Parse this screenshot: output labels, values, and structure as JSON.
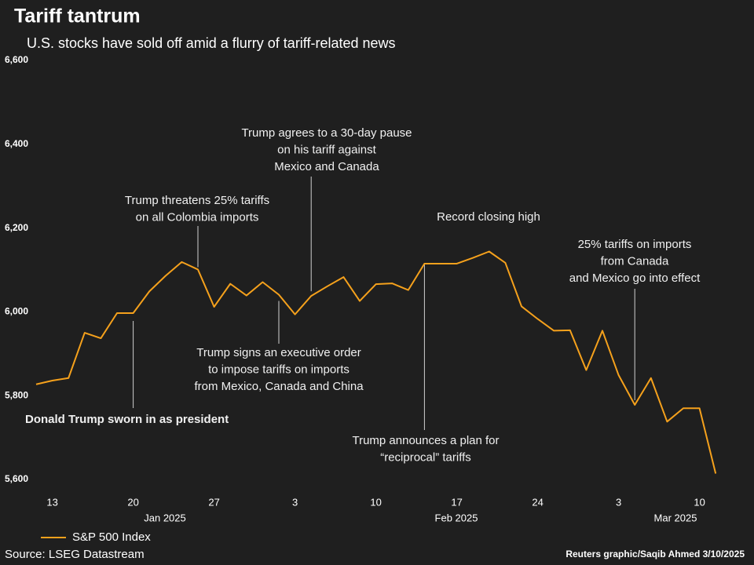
{
  "chart_data": {
    "type": "line",
    "title": "Tariff tantrum",
    "subtitle": "U.S. stocks have sold off amid a flurry of tariff-related news",
    "x": [
      "2025-01-10",
      "2025-01-13",
      "2025-01-14",
      "2025-01-15",
      "2025-01-16",
      "2025-01-17",
      "2025-01-20",
      "2025-01-21",
      "2025-01-22",
      "2025-01-23",
      "2025-01-24",
      "2025-01-27",
      "2025-01-28",
      "2025-01-29",
      "2025-01-30",
      "2025-01-31",
      "2025-02-03",
      "2025-02-04",
      "2025-02-05",
      "2025-02-06",
      "2025-02-07",
      "2025-02-10",
      "2025-02-11",
      "2025-02-12",
      "2025-02-13",
      "2025-02-14",
      "2025-02-17",
      "2025-02-18",
      "2025-02-19",
      "2025-02-20",
      "2025-02-21",
      "2025-02-24",
      "2025-02-25",
      "2025-02-26",
      "2025-02-27",
      "2025-02-28",
      "2025-03-03",
      "2025-03-04",
      "2025-03-05",
      "2025-03-06",
      "2025-03-07",
      "2025-03-10",
      "2025-03-11"
    ],
    "series": [
      {
        "name": "S&P 500 Index",
        "color": "#f5a11c",
        "values": [
          5827,
          5836,
          5842,
          5950,
          5937,
          5997,
          5997,
          6049,
          6086,
          6119,
          6101,
          6012,
          6067,
          6039,
          6071,
          6041,
          5994,
          6038,
          6061,
          6083,
          6026,
          6066,
          6068,
          6052,
          6115,
          6115,
          6115,
          6129,
          6144,
          6117,
          6013,
          5983,
          5955,
          5956,
          5861,
          5955,
          5849,
          5778,
          5842,
          5738,
          5770,
          5770,
          5614
        ]
      }
    ],
    "ylim": [
      5600,
      6600
    ],
    "yticks": [
      {
        "value": 5600,
        "label": "5,600"
      },
      {
        "value": 5800,
        "label": "5,800"
      },
      {
        "value": 6000,
        "label": "6,000"
      },
      {
        "value": 6200,
        "label": "6,200"
      },
      {
        "value": 6400,
        "label": "6,400"
      },
      {
        "value": 6600,
        "label": "6,600"
      }
    ],
    "xticks": [
      {
        "value": "2025-01-13",
        "label": "13"
      },
      {
        "value": "2025-01-20",
        "label": "20"
      },
      {
        "value": "2025-01-27",
        "label": "27"
      },
      {
        "value": "2025-02-03",
        "label": "3"
      },
      {
        "value": "2025-02-10",
        "label": "10"
      },
      {
        "value": "2025-02-17",
        "label": "17"
      },
      {
        "value": "2025-02-24",
        "label": "24"
      },
      {
        "value": "2025-03-03",
        "label": "3"
      },
      {
        "value": "2025-03-10",
        "label": "10"
      }
    ],
    "month_labels": [
      "Jan 2025",
      "Feb 2025",
      "Mar 2025"
    ],
    "annotations": [
      {
        "x": "2025-01-20",
        "lines": [
          "Donald Trump sworn in as president"
        ]
      },
      {
        "x": "2025-01-24",
        "lines": [
          "Trump threatens 25% tariffs",
          "on all Colombia imports"
        ]
      },
      {
        "x": "2025-01-31",
        "lines": [
          "Trump signs an executive order",
          "to impose tariffs on imports",
          "from Mexico, Canada and China"
        ]
      },
      {
        "x": "2025-02-04",
        "lines": [
          "Trump agrees to a 30-day pause",
          "on his tariff against",
          "Mexico and Canada"
        ]
      },
      {
        "x": "2025-02-19",
        "lines": [
          "Record closing high"
        ]
      },
      {
        "x": "2025-02-13",
        "lines": [
          "Trump announces a plan for",
          "“reciprocal” tariffs"
        ]
      },
      {
        "x": "2025-03-04",
        "lines": [
          "25% tariffs on imports",
          "from Canada",
          "and Mexico go into effect"
        ]
      }
    ],
    "source": "Source: LSEG Datastream",
    "credit": "Reuters graphic/Saqib Ahmed 3/10/2025"
  }
}
